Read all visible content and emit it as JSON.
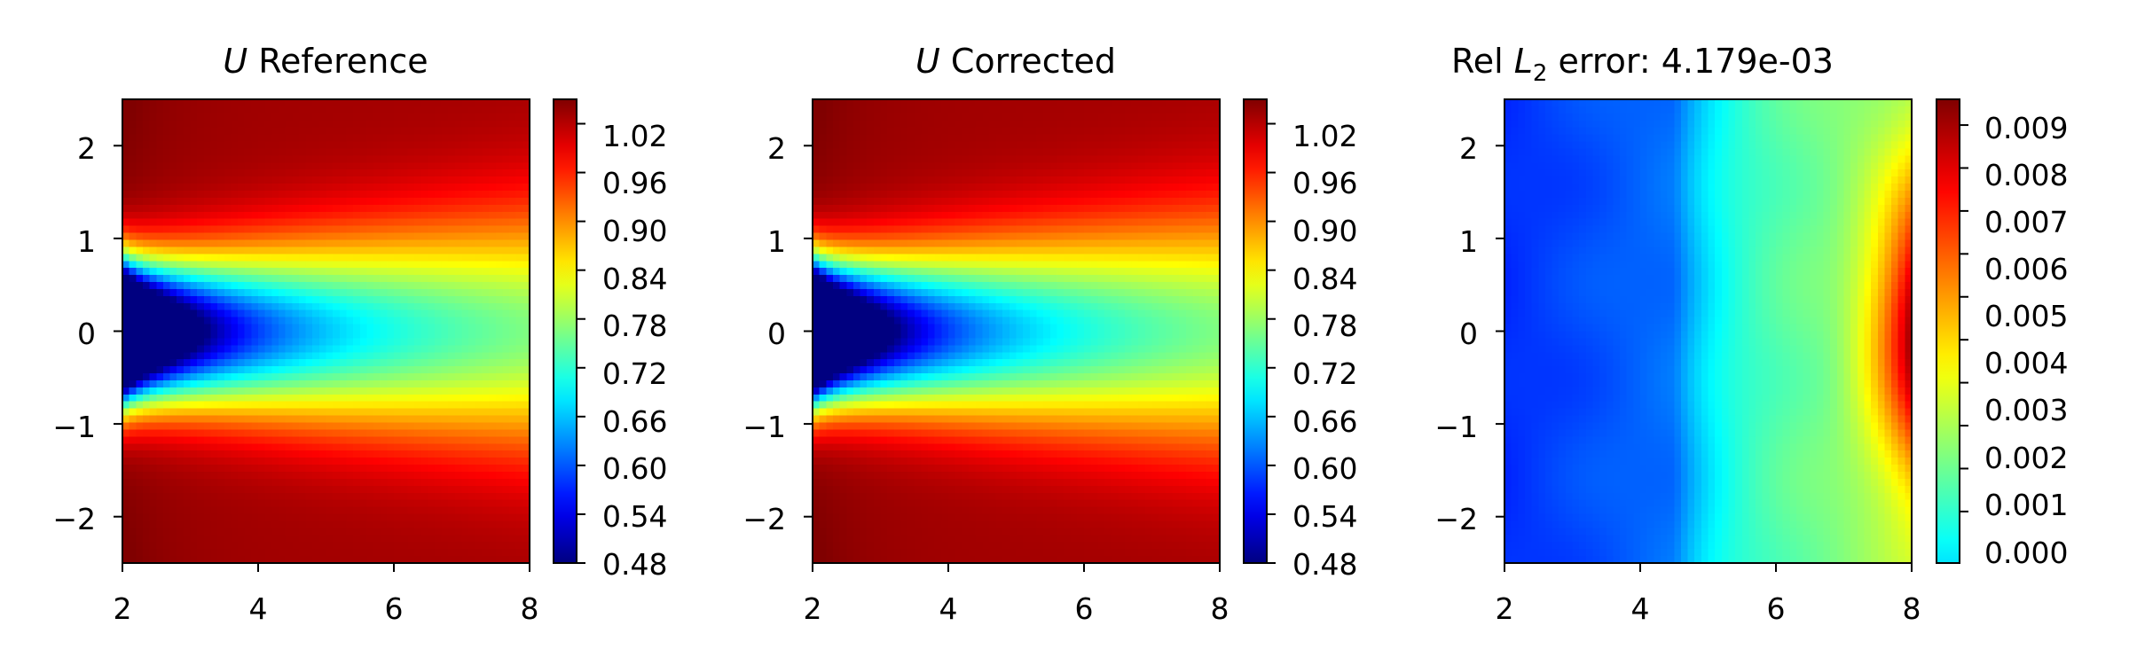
{
  "chart_data": [
    {
      "type": "heatmap",
      "title_var": "U",
      "title_rest": " Reference",
      "x_ticks": [
        "2",
        "4",
        "6",
        "8"
      ],
      "y_ticks": [
        "2",
        "1",
        "0",
        "−1",
        "−2"
      ],
      "xlim": [
        2,
        8
      ],
      "ylim": [
        -2.5,
        2.5
      ],
      "field": "velocity_wake",
      "colormap": "jet",
      "colorbar_range": [
        0.48,
        1.05
      ],
      "colorbar_ticks": [
        "1.02",
        "0.96",
        "0.90",
        "0.84",
        "0.78",
        "0.72",
        "0.66",
        "0.60",
        "0.54",
        "0.48"
      ]
    },
    {
      "type": "heatmap",
      "title_var": "U",
      "title_rest": " Corrected",
      "x_ticks": [
        "2",
        "4",
        "6",
        "8"
      ],
      "y_ticks": [
        "2",
        "1",
        "0",
        "−1",
        "−2"
      ],
      "xlim": [
        2,
        8
      ],
      "ylim": [
        -2.5,
        2.5
      ],
      "field": "velocity_wake",
      "colormap": "jet",
      "colorbar_range": [
        0.48,
        1.05
      ],
      "colorbar_ticks": [
        "1.02",
        "0.96",
        "0.90",
        "0.84",
        "0.78",
        "0.72",
        "0.66",
        "0.60",
        "0.54",
        "0.48"
      ]
    },
    {
      "type": "heatmap",
      "title_pre": "Rel ",
      "title_var": "L",
      "title_sub": "2",
      "title_post": " error: 4.179e-03",
      "x_ticks": [
        "2",
        "4",
        "6",
        "8"
      ],
      "y_ticks": [
        "2",
        "1",
        "0",
        "−1",
        "−2"
      ],
      "xlim": [
        2,
        8
      ],
      "ylim": [
        -2.5,
        2.5
      ],
      "field": "relative_error",
      "colormap": "jet",
      "colorbar_range": [
        -0.0012,
        0.0096
      ],
      "colorbar_ticks": [
        "0.009",
        "0.008",
        "0.007",
        "0.006",
        "0.005",
        "0.004",
        "0.003",
        "0.002",
        "0.001",
        "0.000"
      ]
    }
  ]
}
